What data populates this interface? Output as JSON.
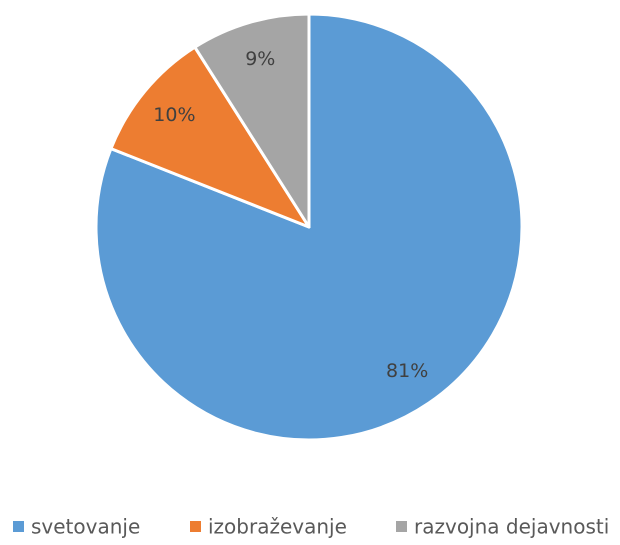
{
  "chart_data": {
    "type": "pie",
    "categories": [
      "svetovanje",
      "izobraževanje",
      "razvojna dejavnosti"
    ],
    "values": [
      81,
      10,
      9
    ],
    "value_labels": [
      "81%",
      "10%",
      "9%"
    ],
    "colors": [
      "#5b9bd5",
      "#ed7d31",
      "#a5a5a5"
    ],
    "legend": "bottom"
  }
}
